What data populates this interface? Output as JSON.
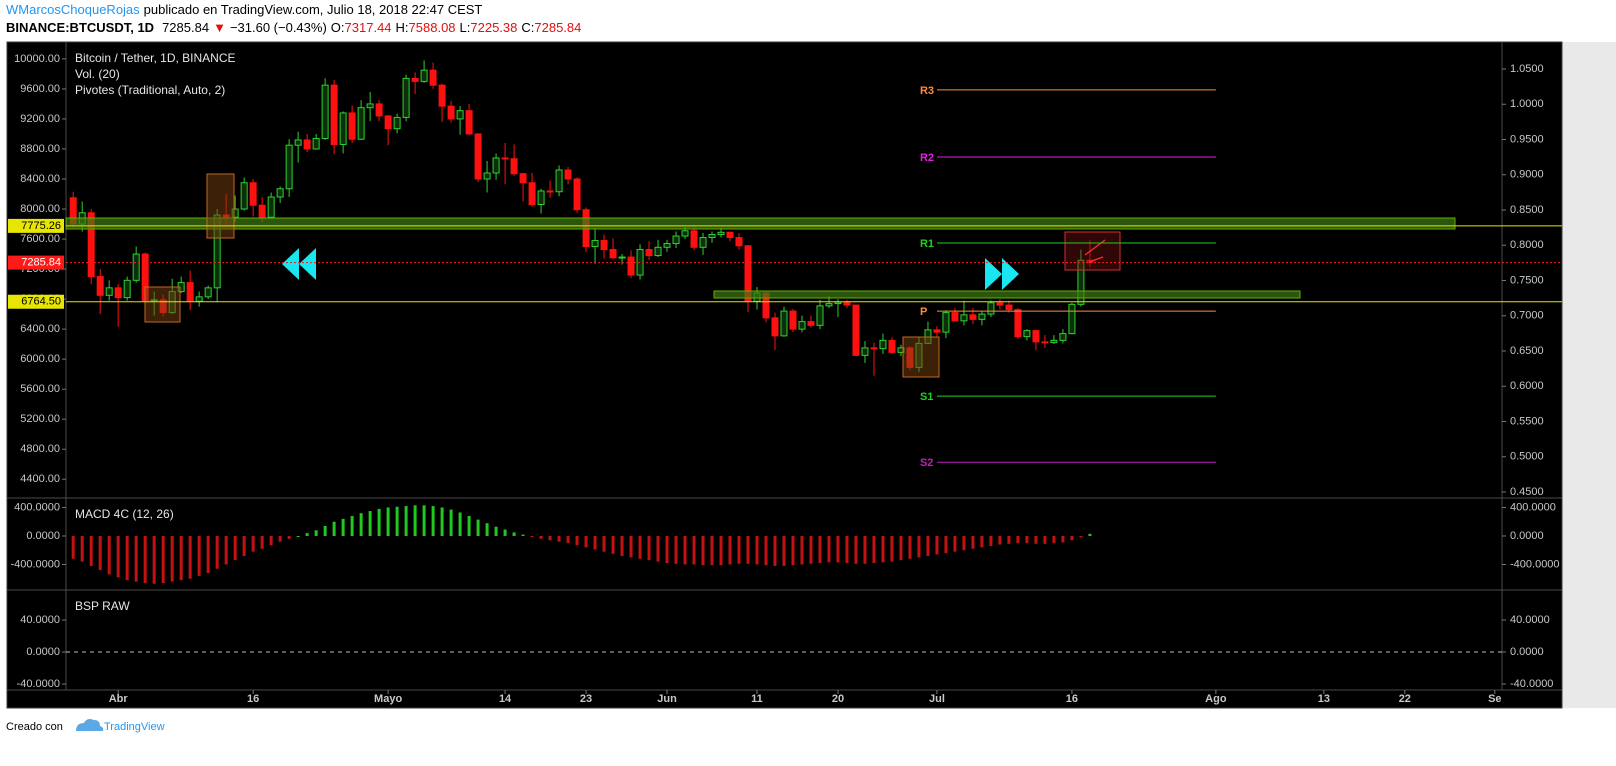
{
  "header": {
    "author": "WMarcosChoqueRojas",
    "published": "publicado en TradingView.com, Julio 18, 2018 22:47 CEST",
    "symbol": "BINANCE:BTCUSDT, 1D",
    "last": "7285.84",
    "arrow": "▼",
    "change": "−31.60 (−0.43%)",
    "ohlc": [
      {
        "label": "O:",
        "value": "7317.44"
      },
      {
        "label": "H:",
        "value": "7588.08"
      },
      {
        "label": "L:",
        "value": "7225.38"
      },
      {
        "label": "C:",
        "value": "7285.84"
      }
    ]
  },
  "footer": {
    "created": "Creado con",
    "brand": "TradingView"
  },
  "chart_data": [
    {
      "type": "candlestick",
      "title": "Bitcoin / Tether, 1D, BINANCE",
      "indicators": [
        "Vol. (20)",
        "Pivotes (Traditional, Auto, 2)"
      ],
      "up_color": "#2fd12f",
      "down_color": "#ff1010",
      "grid": false,
      "x": [
        -5,
        -4,
        -3,
        -2,
        -1,
        0,
        1,
        2,
        3,
        4,
        5,
        6,
        7,
        8,
        9,
        10,
        11,
        12,
        13,
        14,
        15,
        16,
        17,
        18,
        19,
        20,
        21,
        22,
        23,
        24,
        25,
        26,
        27,
        28,
        29,
        30,
        31,
        32,
        33,
        34,
        35,
        36,
        37,
        38,
        39,
        40,
        41,
        42,
        43,
        44,
        45,
        46,
        47,
        48,
        49,
        50,
        51,
        52,
        53,
        54,
        55,
        56,
        57,
        58,
        59,
        60,
        61,
        62,
        63,
        64,
        65,
        66,
        67,
        68,
        69,
        70,
        71,
        72,
        73,
        74,
        75,
        76,
        77,
        78,
        79,
        80,
        81,
        82,
        83,
        84,
        85,
        86,
        87,
        88,
        89,
        90,
        91,
        92,
        93,
        94,
        95,
        96,
        97,
        98,
        99,
        100,
        101,
        102,
        103,
        104,
        105,
        106,
        107,
        108
      ],
      "open": [
        8150,
        7800,
        7950,
        7100,
        6850,
        6950,
        6820,
        7050,
        7400,
        6780,
        6790,
        6620,
        6900,
        7020,
        6770,
        6830,
        6950,
        7920,
        7890,
        8000,
        8350,
        8050,
        7890,
        8160,
        8270,
        8850,
        8920,
        8800,
        8940,
        9650,
        8860,
        9280,
        8930,
        9350,
        9400,
        9240,
        9070,
        9220,
        9740,
        9700,
        9850,
        9650,
        9370,
        9200,
        9310,
        9000,
        8400,
        8480,
        8680,
        8670,
        8470,
        8350,
        8060,
        8240,
        8230,
        8520,
        8400,
        7990,
        7500,
        7580,
        7460,
        7350,
        7360,
        7120,
        7460,
        7380,
        7490,
        7540,
        7640,
        7710,
        7490,
        7620,
        7660,
        7690,
        7620,
        7510,
        6770,
        6880,
        6550,
        6310,
        6640,
        6400,
        6500,
        6450,
        6710,
        6740,
        6760,
        6720,
        6050,
        6150,
        6140,
        6250,
        6090,
        6150,
        5890,
        6210,
        6390,
        6360,
        6620,
        6510,
        6590,
        6530,
        6600,
        6750,
        6720,
        6660,
        6300,
        6380,
        6230,
        6220,
        6250,
        6340,
        6730,
        7317.44
      ],
      "high": [
        8230,
        8100,
        8000,
        7200,
        7050,
        7000,
        7100,
        7500,
        7420,
        6900,
        6860,
        7070,
        7100,
        7180,
        6900,
        6980,
        8000,
        8200,
        8180,
        8420,
        8400,
        8160,
        8220,
        8300,
        8930,
        9030,
        9000,
        9000,
        9740,
        9720,
        9300,
        9380,
        9450,
        9560,
        9450,
        9250,
        9270,
        9790,
        9820,
        9980,
        9950,
        9670,
        9440,
        9370,
        9400,
        9010,
        8640,
        8740,
        8880,
        8860,
        8480,
        8480,
        8270,
        8380,
        8580,
        8560,
        8420,
        8020,
        7740,
        7660,
        7610,
        7400,
        7450,
        7530,
        7570,
        7590,
        7590,
        7700,
        7760,
        7760,
        7680,
        7700,
        7750,
        7700,
        7680,
        7520,
        6960,
        6910,
        6620,
        6700,
        6670,
        6580,
        6580,
        6790,
        6840,
        6800,
        6790,
        6720,
        6240,
        6220,
        6340,
        6290,
        6190,
        6170,
        6290,
        6500,
        6440,
        6650,
        6680,
        6780,
        6680,
        6640,
        6780,
        6800,
        6780,
        6680,
        6400,
        6390,
        6320,
        6320,
        6400,
        6750,
        7460,
        7588.08
      ],
      "low": [
        7750,
        7700,
        7000,
        6600,
        6780,
        6430,
        6780,
        7020,
        6720,
        6580,
        6570,
        6600,
        6880,
        6650,
        6700,
        6800,
        6760,
        7760,
        7830,
        7980,
        7900,
        7820,
        7870,
        8080,
        8160,
        8620,
        8760,
        8790,
        8920,
        8730,
        8740,
        8880,
        8920,
        9170,
        9170,
        8850,
        9010,
        9170,
        9530,
        9680,
        9600,
        9160,
        9150,
        8990,
        8980,
        8360,
        8220,
        8390,
        8330,
        8440,
        8100,
        8030,
        7940,
        8150,
        8170,
        8330,
        7950,
        7430,
        7270,
        7340,
        7330,
        7260,
        7080,
        7060,
        7320,
        7360,
        7430,
        7480,
        7600,
        7450,
        7390,
        7550,
        7620,
        7570,
        7460,
        6630,
        6660,
        6490,
        6120,
        6300,
        6360,
        6360,
        6420,
        6400,
        6680,
        6560,
        6680,
        6040,
        5950,
        5780,
        6070,
        6070,
        6040,
        5850,
        5830,
        6200,
        6300,
        6280,
        6500,
        6450,
        6470,
        6450,
        6560,
        6660,
        6620,
        6270,
        6250,
        6120,
        6150,
        6200,
        6210,
        6330,
        6700,
        7225.38
      ],
      "close": [
        7800,
        7950,
        7100,
        6850,
        6950,
        6820,
        7050,
        7400,
        6780,
        6790,
        6620,
        6900,
        7020,
        6770,
        6830,
        6950,
        7920,
        7890,
        8000,
        8350,
        8050,
        7890,
        8160,
        8270,
        8850,
        8920,
        8800,
        8940,
        9650,
        8860,
        9280,
        8930,
        9350,
        9400,
        9240,
        9070,
        9220,
        9740,
        9700,
        9850,
        9650,
        9370,
        9200,
        9310,
        9000,
        8400,
        8480,
        8680,
        8670,
        8470,
        8350,
        8060,
        8240,
        8230,
        8520,
        8400,
        7990,
        7500,
        7580,
        7460,
        7350,
        7360,
        7120,
        7460,
        7380,
        7490,
        7540,
        7640,
        7710,
        7490,
        7620,
        7660,
        7690,
        7620,
        7510,
        6770,
        6880,
        6550,
        6310,
        6640,
        6400,
        6500,
        6450,
        6710,
        6740,
        6760,
        6720,
        6050,
        6150,
        6140,
        6250,
        6090,
        6150,
        5890,
        6210,
        6390,
        6360,
        6620,
        6510,
        6590,
        6530,
        6600,
        6750,
        6720,
        6660,
        6300,
        6380,
        6230,
        6220,
        6250,
        6340,
        6730,
        7317.44,
        7285.84
      ],
      "xlim": [
        -5.8,
        153.8
      ],
      "xticks": [
        {
          "value": 0,
          "label": "Abr"
        },
        {
          "value": 15,
          "label": "16"
        },
        {
          "value": 30,
          "label": "Mayo"
        },
        {
          "value": 43,
          "label": "14"
        },
        {
          "value": 52,
          "label": "23"
        },
        {
          "value": 61,
          "label": "Jun"
        },
        {
          "value": 71,
          "label": "11"
        },
        {
          "value": 80,
          "label": "20"
        },
        {
          "value": 91,
          "label": "Jul"
        },
        {
          "value": 106,
          "label": "16"
        },
        {
          "value": 122,
          "label": "Ago"
        },
        {
          "value": 134,
          "label": "13"
        },
        {
          "value": 143,
          "label": "22"
        },
        {
          "value": 153,
          "label": "Se"
        }
      ],
      "ylim": [
        4150,
        10225
      ],
      "yticks": [
        {
          "value": 10000,
          "label": "10000.00"
        },
        {
          "value": 9600,
          "label": "9600.00"
        },
        {
          "value": 9200,
          "label": "9200.00"
        },
        {
          "value": 8800,
          "label": "8800.00"
        },
        {
          "value": 8400,
          "label": "8400.00"
        },
        {
          "value": 8000,
          "label": "8000.00"
        },
        {
          "value": 7600,
          "label": "7600.00"
        },
        {
          "value": 7200,
          "label": "7200.00"
        },
        {
          "value": 6800,
          "label": "6800.00"
        },
        {
          "value": 6400,
          "label": "6400.00"
        },
        {
          "value": 6000,
          "label": "6000.00"
        },
        {
          "value": 5600,
          "label": "5600.00"
        },
        {
          "value": 5200,
          "label": "5200.00"
        },
        {
          "value": 4800,
          "label": "4800.00"
        },
        {
          "value": 4400,
          "label": "4400.00"
        }
      ],
      "y2lim": [
        0.4415,
        1.0883
      ],
      "y2ticks": [
        {
          "value": 1.05,
          "label": "1.0500"
        },
        {
          "value": 1.0,
          "label": "1.0000"
        },
        {
          "value": 0.95,
          "label": "0.9500"
        },
        {
          "value": 0.9,
          "label": "0.9000"
        },
        {
          "value": 0.85,
          "label": "0.8500"
        },
        {
          "value": 0.8,
          "label": "0.8000"
        },
        {
          "value": 0.75,
          "label": "0.7500"
        },
        {
          "value": 0.7,
          "label": "0.7000"
        },
        {
          "value": 0.65,
          "label": "0.6500"
        },
        {
          "value": 0.6,
          "label": "0.6000"
        },
        {
          "value": 0.55,
          "label": "0.5500"
        },
        {
          "value": 0.5,
          "label": "0.5000"
        },
        {
          "value": 0.45,
          "label": "0.4500"
        }
      ],
      "price_levels": [
        {
          "value": 7775.26,
          "label": "7775.26",
          "color": "#e6e600",
          "label_color": "#000000",
          "style": "solid"
        },
        {
          "value": 7285.84,
          "label": "7285.84",
          "color": "#ff1a1a",
          "label_color": "#ffffff",
          "style": "dotted"
        },
        {
          "value": 6764.5,
          "label": "6764.50",
          "color": "#e6e600",
          "label_color": "#000000",
          "style": "solid"
        }
      ],
      "pivot_period": [
        91,
        122
      ],
      "pivots": [
        {
          "label": "R3",
          "value": 9587,
          "color": "#ff8c3c"
        },
        {
          "label": "R2",
          "value": 8693,
          "color": "#e020e0"
        },
        {
          "label": "R1",
          "value": 7547,
          "color": "#20d020"
        },
        {
          "label": "P",
          "value": 6640,
          "color": "#ff8c3c"
        },
        {
          "label": "S1",
          "value": 5507,
          "color": "#20d020"
        },
        {
          "label": "S2",
          "value": 4627,
          "color": "#c020c0"
        }
      ]
    },
    {
      "type": "bar",
      "title": "MACD 4C (12, 26)",
      "up_color": "#22c722",
      "down_color": "#c41212",
      "values": [
        -320,
        -360,
        -420,
        -480,
        -540,
        -580,
        -620,
        -640,
        -660,
        -670,
        -660,
        -640,
        -620,
        -600,
        -560,
        -520,
        -460,
        -400,
        -340,
        -280,
        -220,
        -180,
        -130,
        -80,
        -40,
        0,
        40,
        80,
        140,
        200,
        240,
        280,
        320,
        350,
        380,
        400,
        410,
        420,
        430,
        430,
        420,
        400,
        370,
        330,
        280,
        230,
        180,
        130,
        90,
        50,
        20,
        -10,
        -40,
        -60,
        -80,
        -100,
        -130,
        -160,
        -190,
        -220,
        -250,
        -280,
        -300,
        -320,
        -340,
        -360,
        -380,
        -390,
        -400,
        -400,
        -410,
        -410,
        -410,
        -400,
        -390,
        -390,
        -400,
        -410,
        -420,
        -420,
        -410,
        -400,
        -390,
        -380,
        -370,
        -370,
        -380,
        -390,
        -390,
        -380,
        -370,
        -360,
        -340,
        -320,
        -300,
        -280,
        -260,
        -240,
        -220,
        -200,
        -180,
        -160,
        -140,
        -120,
        -110,
        -100,
        -100,
        -110,
        -110,
        -100,
        -90,
        -60,
        -20,
        30
      ],
      "ylim": [
        -758,
        533
      ],
      "yticks": [
        {
          "value": 400,
          "label": "400.0000"
        },
        {
          "value": 0,
          "label": "0.0000"
        },
        {
          "value": -400,
          "label": "-400.0000"
        }
      ]
    },
    {
      "type": "bar",
      "title": "BSP RAW",
      "zero_line": "dashed",
      "ylim": [
        -47.5,
        77.5
      ],
      "yticks": [
        {
          "value": 40,
          "label": "40.0000"
        },
        {
          "value": 0,
          "label": "0.0000"
        },
        {
          "value": -40,
          "label": "-40.0000"
        }
      ]
    }
  ]
}
